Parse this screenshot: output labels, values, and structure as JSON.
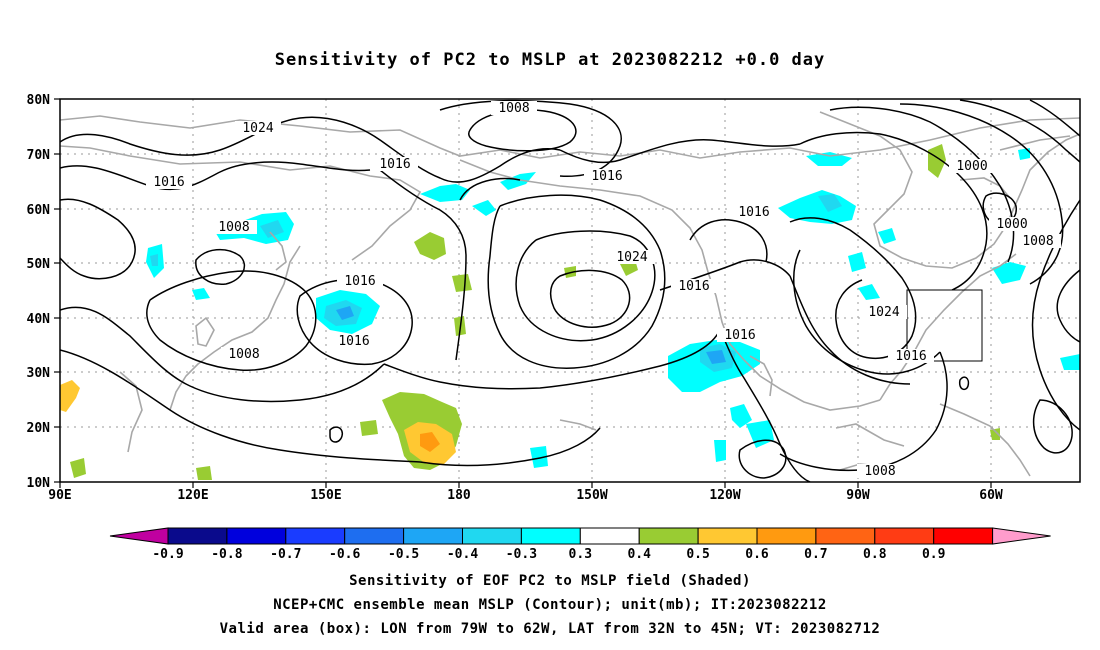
{
  "title": "Sensitivity of PC2 to MSLP at 2023082212 +0.0 day",
  "map": {
    "lon_labels": [
      "90E",
      "120E",
      "150E",
      "180",
      "150W",
      "120W",
      "90W",
      "60W"
    ],
    "lat_labels": [
      "80N",
      "70N",
      "60N",
      "50N",
      "40N",
      "30N",
      "20N",
      "10N"
    ],
    "contour_labels": [
      {
        "text": "1008"
      },
      {
        "text": "1024"
      },
      {
        "text": "1016"
      },
      {
        "text": "1016"
      },
      {
        "text": "1008"
      },
      {
        "text": "1016"
      },
      {
        "text": "1016"
      },
      {
        "text": "1008"
      },
      {
        "text": "1016"
      },
      {
        "text": "1024"
      },
      {
        "text": "1016"
      },
      {
        "text": "1016"
      },
      {
        "text": "1000"
      },
      {
        "text": "1000"
      },
      {
        "text": "1008"
      },
      {
        "text": "1024"
      },
      {
        "text": "1016"
      },
      {
        "text": "1008"
      }
    ],
    "valid_box": {
      "lon_from": "79W",
      "lon_to": "62W",
      "lat_from": "32N",
      "lat_to": "45N"
    }
  },
  "colorbar": {
    "labels": [
      "-0.9",
      "-0.8",
      "-0.7",
      "-0.6",
      "-0.5",
      "-0.4",
      "-0.3",
      "0.3",
      "0.4",
      "0.5",
      "0.6",
      "0.7",
      "0.8",
      "0.9"
    ],
    "colors": [
      "#0a0a8c",
      "#0000dd",
      "#1a3cff",
      "#1e6ef0",
      "#1ea6f5",
      "#20d8f0",
      "#00ffff",
      "#ffffff",
      "#99cc33",
      "#ffc832",
      "#ff9a10",
      "#ff6414",
      "#ff3c14",
      "#ff0000"
    ],
    "low_end_color": "#c000a0",
    "high_end_color": "#ff9ccc"
  },
  "footer": {
    "line1": "Sensitivity of EOF PC2 to MSLP field (Shaded)",
    "line2": "NCEP+CMC ensemble mean MSLP (Contour); unit(mb); IT:2023082212",
    "line3": "Valid area (box): LON from 79W to 62W, LAT from 32N to 45N; VT: 2023082712"
  }
}
